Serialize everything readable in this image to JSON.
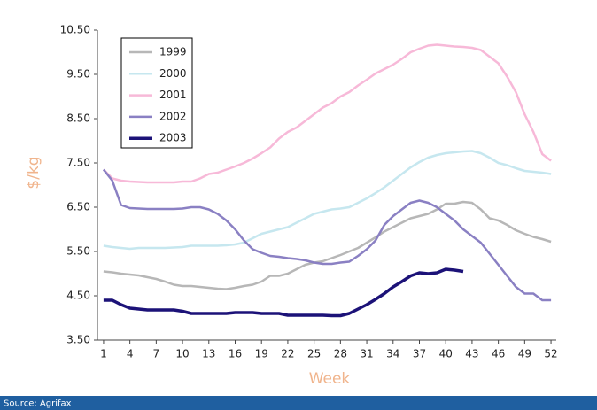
{
  "chart_data": {
    "type": "line",
    "x_label": "Week",
    "y_label": "$/kg",
    "source": "Source: Agrifax",
    "x": [
      1,
      2,
      3,
      4,
      5,
      6,
      7,
      8,
      9,
      10,
      11,
      12,
      13,
      14,
      15,
      16,
      17,
      18,
      19,
      20,
      21,
      22,
      23,
      24,
      25,
      26,
      27,
      28,
      29,
      30,
      31,
      32,
      33,
      34,
      35,
      36,
      37,
      38,
      39,
      40,
      41,
      42,
      43,
      44,
      45,
      46,
      47,
      48,
      49,
      50,
      51,
      52
    ],
    "xlim": [
      0.3,
      52.6
    ],
    "xticks": [
      1,
      4,
      7,
      10,
      13,
      16,
      19,
      22,
      25,
      28,
      31,
      34,
      37,
      40,
      43,
      46,
      49,
      52
    ],
    "ylim": [
      3.5,
      10.5
    ],
    "yticks": [
      {
        "value": 3.5,
        "label": "3.50"
      },
      {
        "value": 4.5,
        "label": "4.50"
      },
      {
        "value": 5.5,
        "label": "5.50"
      },
      {
        "value": 6.5,
        "label": "6.50"
      },
      {
        "value": 7.5,
        "label": "7.50"
      },
      {
        "value": 8.5,
        "label": "8.50"
      },
      {
        "value": 9.5,
        "label": "9.50"
      },
      {
        "value": 10.5,
        "label": "10.50"
      }
    ],
    "grid": false,
    "legend": "upper left",
    "series": [
      {
        "name": "1999",
        "color": "#b7b7b7",
        "values": [
          5.05,
          5.03,
          5.0,
          4.98,
          4.96,
          4.92,
          4.88,
          4.82,
          4.75,
          4.72,
          4.72,
          4.7,
          4.68,
          4.66,
          4.65,
          4.68,
          4.72,
          4.75,
          4.82,
          4.95,
          4.95,
          5.0,
          5.1,
          5.2,
          5.25,
          5.28,
          5.35,
          5.42,
          5.5,
          5.58,
          5.7,
          5.82,
          5.95,
          6.05,
          6.15,
          6.25,
          6.3,
          6.35,
          6.45,
          6.58,
          6.58,
          6.62,
          6.6,
          6.45,
          6.25,
          6.2,
          6.1,
          5.98,
          5.9,
          5.83,
          5.78,
          5.72
        ]
      },
      {
        "name": "2000",
        "color": "#c6e7ef",
        "values": [
          5.63,
          5.6,
          5.58,
          5.56,
          5.58,
          5.58,
          5.58,
          5.58,
          5.59,
          5.6,
          5.63,
          5.63,
          5.63,
          5.63,
          5.64,
          5.66,
          5.7,
          5.8,
          5.9,
          5.95,
          6.0,
          6.05,
          6.15,
          6.25,
          6.35,
          6.4,
          6.45,
          6.47,
          6.5,
          6.6,
          6.7,
          6.82,
          6.95,
          7.1,
          7.25,
          7.4,
          7.52,
          7.62,
          7.68,
          7.72,
          7.74,
          7.76,
          7.77,
          7.72,
          7.62,
          7.5,
          7.45,
          7.38,
          7.32,
          7.3,
          7.28,
          7.25
        ]
      },
      {
        "name": "2001",
        "color": "#f7b9d8",
        "values": [
          7.35,
          7.15,
          7.1,
          7.08,
          7.07,
          7.06,
          7.06,
          7.06,
          7.06,
          7.08,
          7.08,
          7.15,
          7.25,
          7.28,
          7.35,
          7.42,
          7.5,
          7.6,
          7.72,
          7.85,
          8.05,
          8.2,
          8.3,
          8.45,
          8.6,
          8.75,
          8.85,
          9.0,
          9.1,
          9.25,
          9.38,
          9.52,
          9.62,
          9.72,
          9.85,
          10.0,
          10.08,
          10.15,
          10.17,
          10.15,
          10.13,
          10.12,
          10.1,
          10.05,
          9.9,
          9.75,
          9.45,
          9.1,
          8.6,
          8.2,
          7.7,
          7.55
        ]
      },
      {
        "name": "2002",
        "color": "#8a80c3",
        "values": [
          7.35,
          7.1,
          6.55,
          6.48,
          6.47,
          6.46,
          6.46,
          6.46,
          6.46,
          6.47,
          6.5,
          6.5,
          6.45,
          6.35,
          6.2,
          6.0,
          5.75,
          5.55,
          5.47,
          5.4,
          5.38,
          5.35,
          5.33,
          5.3,
          5.25,
          5.22,
          5.22,
          5.25,
          5.27,
          5.4,
          5.55,
          5.75,
          6.1,
          6.3,
          6.45,
          6.6,
          6.65,
          6.6,
          6.5,
          6.35,
          6.2,
          6.0,
          5.85,
          5.7,
          5.45,
          5.2,
          4.95,
          4.7,
          4.55,
          4.55,
          4.4,
          4.4
        ]
      },
      {
        "name": "2003",
        "color": "#1c1278",
        "values": [
          4.4,
          4.4,
          4.3,
          4.22,
          4.2,
          4.18,
          4.18,
          4.18,
          4.18,
          4.15,
          4.1,
          4.1,
          4.1,
          4.1,
          4.1,
          4.12,
          4.12,
          4.12,
          4.1,
          4.1,
          4.1,
          4.06,
          4.06,
          4.06,
          4.06,
          4.06,
          4.05,
          4.05,
          4.1,
          4.2,
          4.3,
          4.42,
          4.55,
          4.7,
          4.82,
          4.95,
          5.02,
          5.0,
          5.02,
          5.1,
          5.08,
          5.05,
          null,
          null,
          null,
          null,
          null,
          null,
          null,
          null,
          null,
          null
        ]
      }
    ]
  }
}
